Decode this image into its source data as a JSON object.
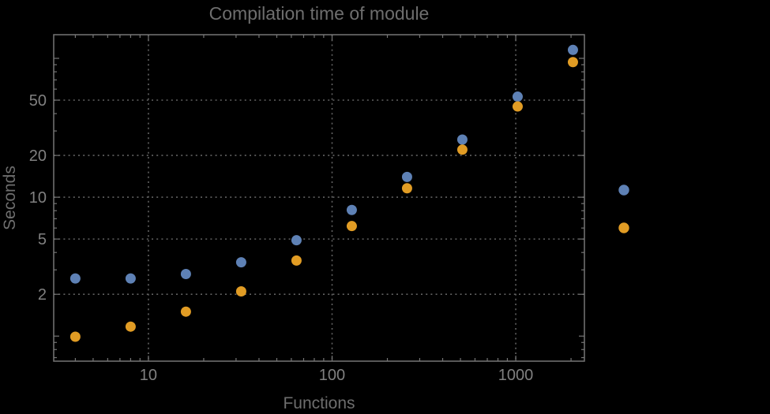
{
  "colors": {
    "background": "#000000",
    "frame": "#767676",
    "grid": "#626262",
    "tick_label": "#808080",
    "title": "#6e6e6e",
    "axis_label": "#6e6e6e",
    "series_1": "#5e81b5",
    "series_2": "#e19c24"
  },
  "chart_data": {
    "type": "scatter",
    "title": "Compilation time of module",
    "xlabel": "Functions",
    "ylabel": "Seconds",
    "x_scale": "log",
    "y_scale": "log",
    "xlim": [
      3.05,
      2365
    ],
    "ylim": [
      0.66,
      148
    ],
    "grid": "dotted gridlines at labeled ticks only",
    "legend_position": "right of plot, marker dots only (labels not visible)",
    "x": [
      4,
      8,
      16,
      32,
      64,
      128,
      256,
      512,
      1024,
      2048
    ],
    "series": [
      {
        "name": "series-1-blue",
        "color": "#5e81b5",
        "values": [
          2.6,
          2.6,
          2.8,
          3.4,
          4.9,
          8.1,
          14,
          26,
          53,
          115
        ]
      },
      {
        "name": "series-2-orange",
        "color": "#e19c24",
        "values": [
          0.99,
          1.17,
          1.5,
          2.1,
          3.5,
          6.2,
          11.6,
          22,
          45,
          94
        ]
      }
    ],
    "x_axis": {
      "labeled_ticks": [
        {
          "v": 10,
          "label": "10"
        },
        {
          "v": 100,
          "label": "100"
        },
        {
          "v": 1000,
          "label": "1000"
        }
      ],
      "gridlines": [
        10,
        100,
        1000
      ]
    },
    "y_axis": {
      "labeled_ticks": [
        {
          "v": 2,
          "label": "2"
        },
        {
          "v": 5,
          "label": "5"
        },
        {
          "v": 10,
          "label": "10"
        },
        {
          "v": 20,
          "label": "20"
        },
        {
          "v": 50,
          "label": "50"
        }
      ],
      "major_unlabeled": [
        1,
        100
      ],
      "gridlines": [
        2,
        5,
        10,
        20,
        50
      ]
    }
  }
}
